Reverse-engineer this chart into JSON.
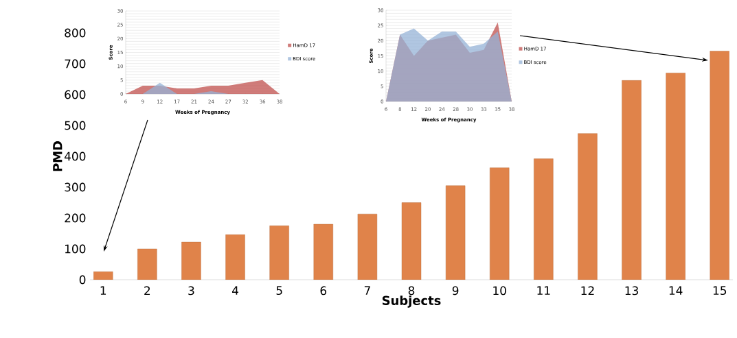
{
  "chart_data": [
    {
      "type": "bar",
      "xlabel": "Subjects",
      "ylabel": "PMD",
      "categories": [
        "1",
        "2",
        "3",
        "4",
        "5",
        "6",
        "7",
        "8",
        "9",
        "10",
        "11",
        "12",
        "13",
        "14",
        "15"
      ],
      "values": [
        26,
        100,
        122,
        146,
        175,
        180,
        213,
        250,
        305,
        363,
        392,
        474,
        646,
        670,
        741
      ],
      "color": "#e0834a",
      "ylim": [
        0,
        800
      ],
      "yticks": [
        0,
        100,
        200,
        300,
        400,
        500,
        600,
        700,
        800
      ]
    },
    {
      "type": "area",
      "xlabel": "Weeks of Pregnancy",
      "ylabel": "Score",
      "categories": [
        "6",
        "9",
        "12",
        "17",
        "21",
        "24",
        "27",
        "32",
        "36",
        "38"
      ],
      "series": [
        {
          "name": "HamD 17",
          "color": "#c0504d",
          "values": [
            0,
            3,
            3,
            2,
            2,
            3,
            3,
            4,
            5,
            0
          ]
        },
        {
          "name": "BDI score",
          "color": "#95b3d7",
          "values": [
            0,
            0,
            4,
            0,
            0,
            1,
            0,
            0,
            0,
            0
          ]
        }
      ],
      "ylim": [
        0,
        30
      ],
      "yticks": [
        0,
        5,
        10,
        15,
        20,
        25,
        30
      ],
      "grid": "y",
      "legend": "right"
    },
    {
      "type": "area",
      "xlabel": "Weeks of Pregnancy",
      "ylabel": "Score",
      "categories": [
        "6",
        "8",
        "12",
        "20",
        "24",
        "28",
        "30",
        "33",
        "35",
        "38"
      ],
      "series": [
        {
          "name": "HamD 17",
          "color": "#c0504d",
          "values": [
            0,
            22,
            15,
            20,
            21,
            22,
            16,
            17,
            26,
            0
          ]
        },
        {
          "name": "BDI score",
          "color": "#95b3d7",
          "values": [
            0,
            22,
            24,
            20,
            23,
            23,
            18,
            19,
            23,
            0
          ]
        }
      ],
      "ylim": [
        0,
        30
      ],
      "yticks": [
        0,
        5,
        10,
        15,
        20,
        25,
        30
      ],
      "grid": "y",
      "legend": "right"
    }
  ]
}
